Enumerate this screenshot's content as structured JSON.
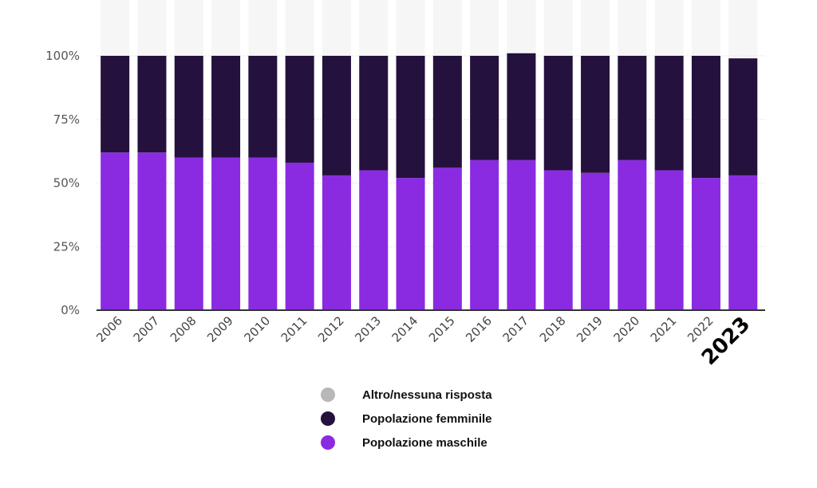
{
  "chart_data": {
    "type": "bar",
    "stacked": true,
    "categories": [
      "2006",
      "2007",
      "2008",
      "2009",
      "2010",
      "2011",
      "2012",
      "2013",
      "2014",
      "2015",
      "2016",
      "2017",
      "2018",
      "2019",
      "2020",
      "2021",
      "2022",
      "2023"
    ],
    "emphasized_category": "2023",
    "ylim": [
      0,
      100
    ],
    "yticks": [
      "0%",
      "25%",
      "50%",
      "75%",
      "100%"
    ],
    "ytick_values": [
      0,
      25,
      50,
      75,
      100
    ],
    "grid": true,
    "legend_position": "bottom-center",
    "series": [
      {
        "name": "Popolazione maschile",
        "color": "#8a2be2",
        "values": [
          62,
          62,
          60,
          60,
          60,
          58,
          53,
          55,
          52,
          56,
          59,
          59,
          55,
          54,
          59,
          55,
          52,
          53
        ]
      },
      {
        "name": "Popolazione femminile",
        "color": "#24113d",
        "values": [
          38,
          38,
          40,
          40,
          40,
          42,
          47,
          45,
          48,
          44,
          41,
          42,
          45,
          46,
          41,
          45,
          48,
          46
        ]
      },
      {
        "name": "Altro/nessuna risposta",
        "color": "#b8b8b8",
        "values": [
          0,
          0,
          0,
          0,
          0,
          0,
          0,
          0,
          0,
          0,
          0,
          0,
          0,
          0,
          0,
          0,
          0,
          0
        ]
      }
    ]
  },
  "legend": [
    {
      "label": "Altro/nessuna risposta",
      "color": "#b8b8b8"
    },
    {
      "label": "Popolazione femminile",
      "color": "#24113d"
    },
    {
      "label": "Popolazione maschile",
      "color": "#8a2be2"
    }
  ]
}
